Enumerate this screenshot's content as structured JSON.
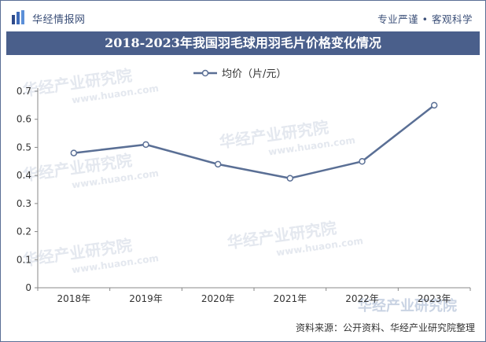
{
  "header": {
    "logo_text": "华经情报网",
    "slogan_left": "专业严谨",
    "slogan_right": "客观科学"
  },
  "watermark": {
    "cn": "华经产业研究院",
    "en": "www.huaon.com"
  },
  "colors": {
    "title_bg": "#4a5f8b",
    "line": "#5a6f95",
    "axis": "#888888"
  },
  "footer": {
    "source": "资料来源：公开资料、华经产业研究院整理"
  },
  "chart_data": {
    "type": "line",
    "title": "2018-2023年我国羽毛球用羽毛片价格变化情况",
    "categories": [
      "2018年",
      "2019年",
      "2020年",
      "2021年",
      "2022年",
      "2023年"
    ],
    "series": [
      {
        "name": "均价（片/元）",
        "values": [
          0.48,
          0.51,
          0.44,
          0.39,
          0.45,
          0.65
        ]
      }
    ],
    "yticks": [
      "0",
      "0.1",
      "0.2",
      "0.3",
      "0.4",
      "0.5",
      "0.6",
      "0.7"
    ],
    "ylim": [
      0,
      0.7
    ],
    "legend": "top-center",
    "grid": false
  }
}
